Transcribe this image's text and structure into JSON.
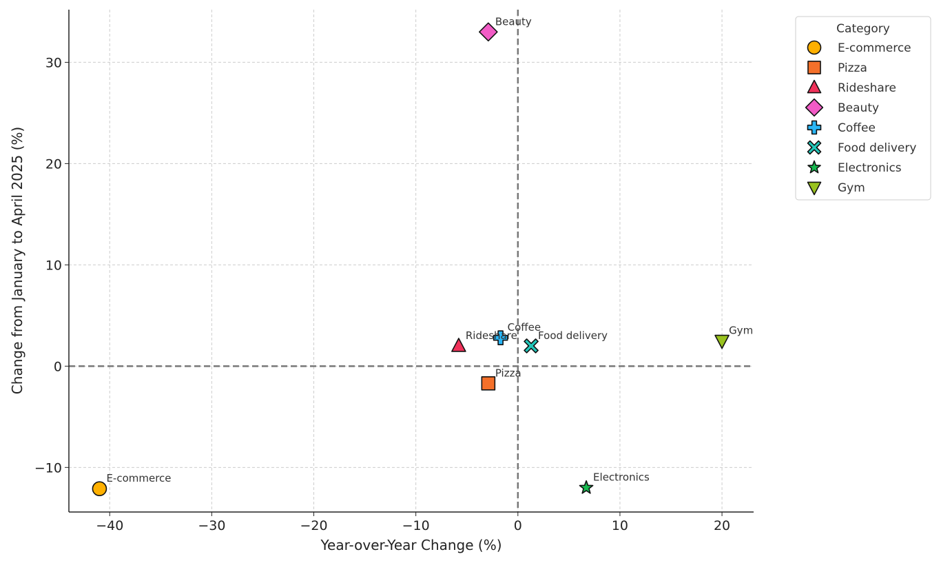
{
  "chart_data": {
    "type": "scatter",
    "xlabel": "Year-over-Year Change (%)",
    "ylabel": "Change from January to April 2025 (%)",
    "xlim": [
      -44,
      23.1
    ],
    "ylim": [
      -14.4,
      35.2
    ],
    "xticks": [
      -40,
      -30,
      -20,
      -10,
      0,
      10,
      20
    ],
    "yticks": [
      -10,
      0,
      10,
      20,
      30
    ],
    "grid": true,
    "reference_lines": {
      "x": 0,
      "y": 0,
      "style": "dashed"
    },
    "legend": {
      "title": "Category",
      "placement": "outside-top-right"
    },
    "points": [
      {
        "name": "E-commerce",
        "x": -41.0,
        "y": -12.1,
        "marker": "circle",
        "color": "#FFB000"
      },
      {
        "name": "Pizza",
        "x": -2.9,
        "y": -1.7,
        "marker": "square",
        "color": "#F4702A"
      },
      {
        "name": "Rideshare",
        "x": -5.8,
        "y": 2.0,
        "marker": "triangle-up",
        "color": "#F0325A"
      },
      {
        "name": "Beauty",
        "x": -2.9,
        "y": 33.0,
        "marker": "diamond",
        "color": "#F25BC6"
      },
      {
        "name": "Coffee",
        "x": -1.7,
        "y": 2.8,
        "marker": "plus",
        "color": "#29B6F6"
      },
      {
        "name": "Food delivery",
        "x": 1.3,
        "y": 2.0,
        "marker": "x",
        "color": "#22C7BA"
      },
      {
        "name": "Electronics",
        "x": 6.7,
        "y": -12.0,
        "marker": "star",
        "color": "#17B84F"
      },
      {
        "name": "Gym",
        "x": 20.0,
        "y": 2.5,
        "marker": "triangle-down",
        "color": "#99C21E"
      }
    ]
  }
}
